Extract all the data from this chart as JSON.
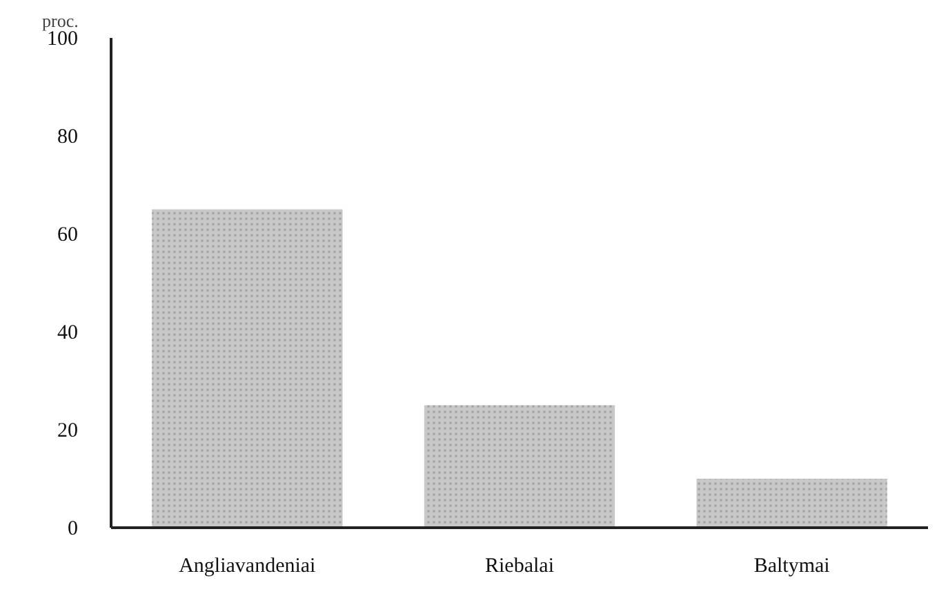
{
  "chart_data": {
    "type": "bar",
    "ylabel": "proc.",
    "categories": [
      "Angliavandeniai",
      "Riebalai",
      "Baltymai"
    ],
    "values": [
      65,
      25,
      10
    ],
    "color": "#c8c8c8",
    "ylim": [
      0,
      100
    ],
    "yticks": [
      0,
      20,
      40,
      60,
      80,
      100
    ],
    "grid": false
  }
}
